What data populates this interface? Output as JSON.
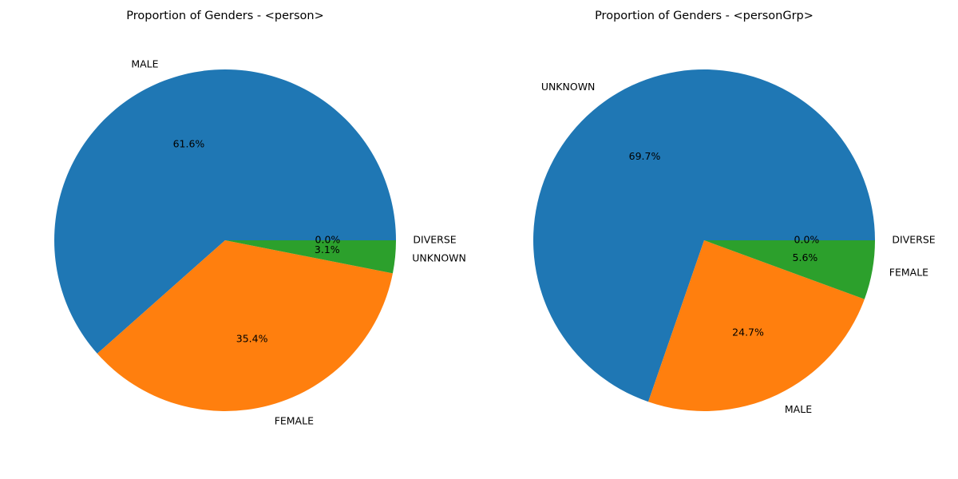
{
  "chart_data": [
    {
      "type": "pie",
      "title": "Proportion of Genders - <person>",
      "slices": [
        {
          "label": "MALE",
          "value": 61.6,
          "pct_label": "61.6%",
          "color": "#1f77b4"
        },
        {
          "label": "FEMALE",
          "value": 35.4,
          "pct_label": "35.4%",
          "color": "#ff7f0e"
        },
        {
          "label": "UNKNOWN",
          "value": 3.1,
          "pct_label": "3.1%",
          "color": "#2ca02c"
        },
        {
          "label": "DIVERSE",
          "value": 0.0,
          "pct_label": "0.0%",
          "color": "#d62728"
        }
      ]
    },
    {
      "type": "pie",
      "title": "Proportion of Genders - <personGrp>",
      "slices": [
        {
          "label": "UNKNOWN",
          "value": 69.7,
          "pct_label": "69.7%",
          "color": "#1f77b4"
        },
        {
          "label": "MALE",
          "value": 24.7,
          "pct_label": "24.7%",
          "color": "#ff7f0e"
        },
        {
          "label": "FEMALE",
          "value": 5.6,
          "pct_label": "5.6%",
          "color": "#2ca02c"
        },
        {
          "label": "DIVERSE",
          "value": 0.0,
          "pct_label": "0.0%",
          "color": "#d62728"
        }
      ]
    }
  ]
}
